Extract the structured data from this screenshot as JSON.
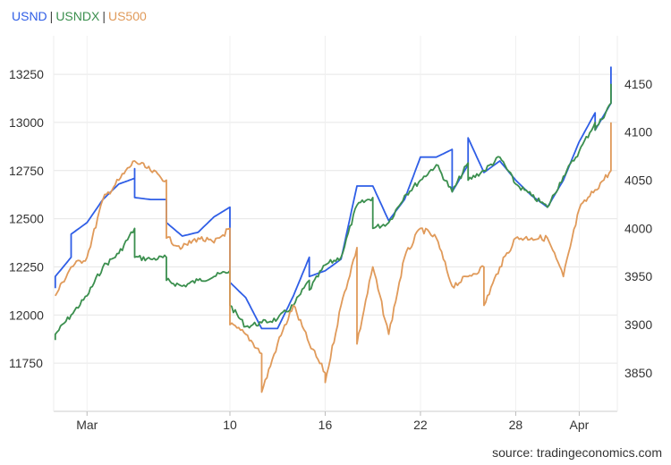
{
  "legend": {
    "usnd": {
      "label": "USND",
      "color": "#2f5ee6"
    },
    "usndx": {
      "label": "USNDX",
      "color": "#3b8f4e"
    },
    "us500": {
      "label": "US500",
      "color": "#e09a5a"
    }
  },
  "source": "source: tradingeconomics.com",
  "chart_data": {
    "type": "line",
    "grid": true,
    "x_ticks": [
      "Mar",
      "10",
      "16",
      "22",
      "28",
      "Apr"
    ],
    "y_left": {
      "ticks": [
        11750,
        12000,
        12250,
        12500,
        12750,
        13000,
        13250
      ],
      "range": [
        11500,
        13450
      ]
    },
    "y_right": {
      "ticks": [
        3850,
        3900,
        3950,
        4000,
        4050,
        4100,
        4150
      ],
      "range": [
        3810,
        4200
      ]
    },
    "series": [
      {
        "name": "USND",
        "axis": "left",
        "color": "#2f5ee6",
        "points": [
          [
            "Feb 27",
            12140
          ],
          [
            "Feb 27",
            12200
          ],
          [
            "Feb 28",
            12300
          ],
          [
            "Feb 28",
            12420
          ],
          [
            "Mar 1",
            12480
          ],
          [
            "Mar 2",
            12600
          ],
          [
            "Mar 3",
            12680
          ],
          [
            "Mar 4",
            12710
          ],
          [
            "Mar 4",
            12760
          ],
          [
            "Mar 4",
            12610
          ],
          [
            "Mar 5",
            12600
          ],
          [
            "Mar 6",
            12600
          ],
          [
            "Mar 6",
            12480
          ],
          [
            "Mar 7",
            12410
          ],
          [
            "Mar 8",
            12430
          ],
          [
            "Mar 9",
            12510
          ],
          [
            "Mar 10",
            12560
          ],
          [
            "Mar 10",
            12170
          ],
          [
            "Mar 11",
            12090
          ],
          [
            "Mar 12",
            11930
          ],
          [
            "Mar 13",
            11930
          ],
          [
            "Mar 14",
            12100
          ],
          [
            "Mar 15",
            12300
          ],
          [
            "Mar 15",
            12200
          ],
          [
            "Mar 16",
            12230
          ],
          [
            "Mar 17",
            12290
          ],
          [
            "Mar 18",
            12670
          ],
          [
            "Mar 19",
            12670
          ],
          [
            "Mar 20",
            12490
          ],
          [
            "Mar 21",
            12600
          ],
          [
            "Mar 22",
            12820
          ],
          [
            "Mar 23",
            12820
          ],
          [
            "Mar 24",
            12860
          ],
          [
            "Mar 24",
            12640
          ],
          [
            "Mar 25",
            12780
          ],
          [
            "Mar 25",
            12920
          ],
          [
            "Mar 26",
            12740
          ],
          [
            "Mar 27",
            12800
          ],
          [
            "Mar 28",
            12700
          ],
          [
            "Mar 29",
            12620
          ],
          [
            "Mar 30",
            12560
          ],
          [
            "Mar 31",
            12700
          ],
          [
            "Apr 1",
            12900
          ],
          [
            "Apr 2",
            13050
          ],
          [
            "Apr 2",
            12960
          ],
          [
            "Apr 3",
            13100
          ],
          [
            "Apr 3",
            13290
          ]
        ]
      },
      {
        "name": "USNDX",
        "axis": "left",
        "color": "#3b8f4e",
        "points": [
          [
            "Feb 27",
            11870
          ],
          [
            "Feb 27",
            11900
          ],
          [
            "Feb 28",
            12000
          ],
          [
            "Mar 1",
            12100
          ],
          [
            "Mar 2",
            12250
          ],
          [
            "Mar 3",
            12320
          ],
          [
            "Mar 4",
            12450
          ],
          [
            "Mar 4",
            12300
          ],
          [
            "Mar 5",
            12290
          ],
          [
            "Mar 6",
            12300
          ],
          [
            "Mar 6",
            12180
          ],
          [
            "Mar 7",
            12150
          ],
          [
            "Mar 8",
            12180
          ],
          [
            "Mar 9",
            12200
          ],
          [
            "Mar 10",
            12230
          ],
          [
            "Mar 10",
            12050
          ],
          [
            "Mar 11",
            11940
          ],
          [
            "Mar 12",
            11960
          ],
          [
            "Mar 13",
            11980
          ],
          [
            "Mar 14",
            12050
          ],
          [
            "Mar 15",
            12180
          ],
          [
            "Mar 15",
            12130
          ],
          [
            "Mar 16",
            12260
          ],
          [
            "Mar 17",
            12300
          ],
          [
            "Mar 18",
            12570
          ],
          [
            "Mar 19",
            12610
          ],
          [
            "Mar 19",
            12450
          ],
          [
            "Mar 20",
            12480
          ],
          [
            "Mar 21",
            12620
          ],
          [
            "Mar 22",
            12700
          ],
          [
            "Mar 23",
            12780
          ],
          [
            "Mar 24",
            12640
          ],
          [
            "Mar 25",
            12790
          ],
          [
            "Mar 25",
            12700
          ],
          [
            "Mar 26",
            12750
          ],
          [
            "Mar 27",
            12820
          ],
          [
            "Mar 28",
            12680
          ],
          [
            "Mar 29",
            12620
          ],
          [
            "Mar 30",
            12560
          ],
          [
            "Mar 31",
            12720
          ],
          [
            "Apr 1",
            12850
          ],
          [
            "Apr 2",
            13000
          ],
          [
            "Apr 2",
            12960
          ],
          [
            "Apr 3",
            13100
          ],
          [
            "Apr 3",
            13200
          ]
        ]
      },
      {
        "name": "US500",
        "axis": "right",
        "color": "#e09a5a",
        "points": [
          [
            "Feb 27",
            3930
          ],
          [
            "Feb 28",
            3960
          ],
          [
            "Mar 1",
            3970
          ],
          [
            "Mar 2",
            4030
          ],
          [
            "Mar 3",
            4050
          ],
          [
            "Mar 4",
            4070
          ],
          [
            "Mar 5",
            4060
          ],
          [
            "Mar 6",
            4050
          ],
          [
            "Mar 6",
            3990
          ],
          [
            "Mar 7",
            3980
          ],
          [
            "Mar 8",
            3990
          ],
          [
            "Mar 9",
            3985
          ],
          [
            "Mar 10",
            4000
          ],
          [
            "Mar 10",
            3900
          ],
          [
            "Mar 11",
            3890
          ],
          [
            "Mar 12",
            3870
          ],
          [
            "Mar 12",
            3830
          ],
          [
            "Mar 13",
            3880
          ],
          [
            "Mar 14",
            3920
          ],
          [
            "Mar 15",
            3880
          ],
          [
            "Mar 16",
            3850
          ],
          [
            "Mar 16",
            3840
          ],
          [
            "Mar 17",
            3920
          ],
          [
            "Mar 18",
            3980
          ],
          [
            "Mar 18",
            3880
          ],
          [
            "Mar 19",
            3960
          ],
          [
            "Mar 20",
            3890
          ],
          [
            "Mar 21",
            3970
          ],
          [
            "Mar 22",
            4000
          ],
          [
            "Mar 23",
            3990
          ],
          [
            "Mar 24",
            3940
          ],
          [
            "Mar 25",
            3950
          ],
          [
            "Mar 26",
            3960
          ],
          [
            "Mar 26",
            3920
          ],
          [
            "Mar 27",
            3960
          ],
          [
            "Mar 28",
            3990
          ],
          [
            "Mar 29",
            3990
          ],
          [
            "Mar 30",
            3990
          ],
          [
            "Mar 31",
            3950
          ],
          [
            "Apr 1",
            4020
          ],
          [
            "Apr 2",
            4040
          ],
          [
            "Apr 3",
            4060
          ],
          [
            "Apr 3",
            4110
          ]
        ]
      }
    ]
  }
}
